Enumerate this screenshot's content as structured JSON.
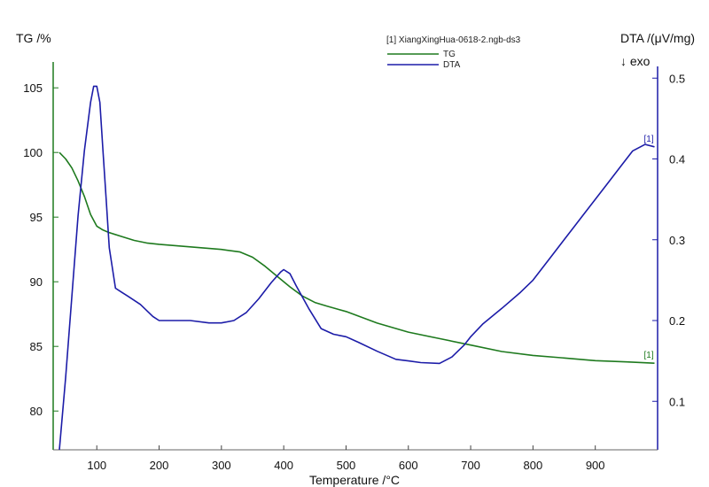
{
  "chart_data": {
    "type": "line",
    "xlabel": "Temperature /°C",
    "ylabel_left": "TG /%",
    "ylabel_right": "DTA /(μV/mg)",
    "right_annotation": "↓ exo",
    "legend_title": "[1] XiangXingHua-0618-2.ngb-ds3",
    "end_marker": "[1]",
    "xlim": [
      30,
      1000
    ],
    "ylim_left": [
      77,
      107
    ],
    "ylim_right": [
      0.04,
      0.52
    ],
    "x_ticks": [
      100,
      200,
      300,
      400,
      500,
      600,
      700,
      800,
      900
    ],
    "y_ticks_left": [
      80,
      85,
      90,
      95,
      100,
      105
    ],
    "y_ticks_right": [
      0.1,
      0.2,
      0.3,
      0.4,
      0.5
    ],
    "series": [
      {
        "name": "TG",
        "axis": "left",
        "color": "#1e7a1e",
        "x": [
          40,
          50,
          60,
          70,
          80,
          90,
          100,
          110,
          120,
          140,
          160,
          180,
          200,
          250,
          300,
          330,
          350,
          370,
          390,
          410,
          430,
          450,
          470,
          500,
          550,
          600,
          650,
          700,
          750,
          800,
          850,
          900,
          950,
          995
        ],
        "y": [
          100.0,
          99.5,
          98.8,
          97.8,
          96.6,
          95.2,
          94.3,
          94.0,
          93.8,
          93.5,
          93.2,
          93.0,
          92.9,
          92.7,
          92.5,
          92.3,
          91.9,
          91.2,
          90.4,
          89.6,
          88.9,
          88.4,
          88.1,
          87.7,
          86.8,
          86.1,
          85.6,
          85.1,
          84.6,
          84.3,
          84.1,
          83.9,
          83.8,
          83.7
        ]
      },
      {
        "name": "DTA",
        "axis": "right",
        "color": "#1c1ca8",
        "x": [
          40,
          50,
          60,
          70,
          80,
          90,
          95,
          100,
          105,
          110,
          115,
          120,
          130,
          140,
          150,
          170,
          190,
          200,
          220,
          250,
          280,
          300,
          320,
          340,
          360,
          380,
          395,
          400,
          410,
          420,
          440,
          460,
          480,
          500,
          520,
          550,
          580,
          600,
          620,
          650,
          670,
          690,
          700,
          720,
          750,
          780,
          800,
          830,
          850,
          880,
          900,
          920,
          940,
          960,
          980,
          995
        ],
        "y": [
          0.04,
          0.13,
          0.23,
          0.33,
          0.41,
          0.47,
          0.49,
          0.49,
          0.47,
          0.41,
          0.35,
          0.29,
          0.24,
          0.235,
          0.23,
          0.22,
          0.205,
          0.2,
          0.2,
          0.2,
          0.197,
          0.197,
          0.2,
          0.21,
          0.227,
          0.247,
          0.26,
          0.263,
          0.258,
          0.243,
          0.215,
          0.19,
          0.183,
          0.18,
          0.173,
          0.162,
          0.152,
          0.15,
          0.148,
          0.147,
          0.155,
          0.17,
          0.18,
          0.196,
          0.215,
          0.235,
          0.25,
          0.28,
          0.3,
          0.33,
          0.35,
          0.37,
          0.39,
          0.41,
          0.418,
          0.415
        ]
      }
    ]
  }
}
